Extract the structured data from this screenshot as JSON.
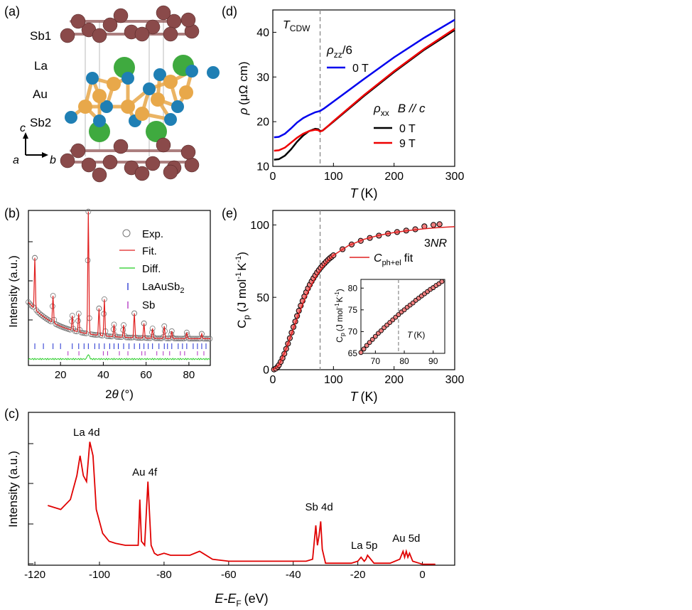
{
  "panel_labels": {
    "a": "(a)",
    "b": "(b)",
    "c": "(c)",
    "d": "(d)",
    "e": "(e)"
  },
  "crystal": {
    "atoms": {
      "sb1": "Sb1",
      "la": "La",
      "au": "Au",
      "sb2": "Sb2"
    },
    "axes": {
      "c": "c",
      "a": "a",
      "b": "b"
    },
    "colors": {
      "sb1": "#8a4a4a",
      "la": "#3faa3f",
      "au": "#e8a84a",
      "sb2": "#1f7fb4"
    }
  },
  "chart_data": [
    {
      "panel": "b",
      "type": "scatter",
      "ylabel": "Intensity (a.u.)",
      "xlabel_prefix": "2",
      "xlabel_symbol": "θ",
      "xlabel_unit": "(°)",
      "xlim": [
        5,
        90
      ],
      "xticks": [
        20,
        40,
        60,
        80
      ],
      "legend": [
        "Exp.",
        "Fit.",
        "Diff.",
        "LaAuSb",
        "Sb"
      ],
      "legend_sub": "2",
      "colors": {
        "exp": "#777777",
        "fit": "#e02020",
        "diff": "#22cc22",
        "laausb2": "#2030d0",
        "sb": "#b030c0"
      },
      "peaks": [
        {
          "x": 8,
          "y": 0.42
        },
        {
          "x": 16.5,
          "y": 0.22
        },
        {
          "x": 25.5,
          "y": 0.12
        },
        {
          "x": 28.5,
          "y": 0.15
        },
        {
          "x": 33,
          "y": 1.0
        },
        {
          "x": 38,
          "y": 0.22
        },
        {
          "x": 40.5,
          "y": 0.3
        },
        {
          "x": 45,
          "y": 0.1
        },
        {
          "x": 49.5,
          "y": 0.1
        },
        {
          "x": 54.5,
          "y": 0.2
        },
        {
          "x": 59,
          "y": 0.12
        },
        {
          "x": 63,
          "y": 0.08
        },
        {
          "x": 68.5,
          "y": 0.1
        },
        {
          "x": 72,
          "y": 0.06
        },
        {
          "x": 79,
          "y": 0.05
        },
        {
          "x": 86,
          "y": 0.04
        }
      ]
    },
    {
      "panel": "c",
      "type": "line",
      "ylabel": "Intensity (a.u.)",
      "xlabel": "E-E",
      "xlabel_sub": "F",
      "xlabel_unit": "(eV)",
      "xlim": [
        -122,
        10
      ],
      "xticks": [
        -120,
        -100,
        -80,
        -60,
        -40,
        -20,
        0
      ],
      "color": "#e00000",
      "annotations": [
        {
          "text": "La 4d",
          "x": -104
        },
        {
          "text": "Au 4f",
          "x": -86
        },
        {
          "text": "Sb 4d",
          "x": -32
        },
        {
          "text": "La 5p",
          "x": -18
        },
        {
          "text": "Au 5d",
          "x": -5
        }
      ],
      "series": [
        {
          "x": [
            -116,
            -112,
            -109,
            -107,
            -106,
            -105,
            -104,
            -103,
            -102,
            -101,
            -99,
            -97,
            -95,
            -92,
            -90,
            -88,
            -87.5,
            -87,
            -86,
            -85,
            -84,
            -83,
            -82,
            -80,
            -78,
            -75,
            -72,
            -69,
            -68,
            -65,
            -60,
            -50,
            -45,
            -40,
            -36,
            -34,
            -33,
            -32.5,
            -32,
            -31.5,
            -31,
            -30,
            -28,
            -25,
            -22,
            -20,
            -19,
            -18,
            -17.5,
            -17,
            -15,
            -10,
            -7,
            -6,
            -5.5,
            -5,
            -4.5,
            -4,
            -3,
            -1,
            0,
            2,
            4
          ],
          "y": [
            0.3,
            0.28,
            0.33,
            0.45,
            0.55,
            0.45,
            0.42,
            0.62,
            0.55,
            0.28,
            0.16,
            0.12,
            0.11,
            0.1,
            0.1,
            0.1,
            0.33,
            0.12,
            0.1,
            0.42,
            0.1,
            0.06,
            0.05,
            0.06,
            0.05,
            0.05,
            0.05,
            0.07,
            0.06,
            0.03,
            0.02,
            0.02,
            0.02,
            0.02,
            0.02,
            0.03,
            0.2,
            0.1,
            0.15,
            0.22,
            0.08,
            0.01,
            0.01,
            0.01,
            0.01,
            0.02,
            0.04,
            0.02,
            0.03,
            0.05,
            0.01,
            0.01,
            0.03,
            0.07,
            0.04,
            0.07,
            0.04,
            0.06,
            0.02,
            0.01,
            0.005,
            0.005,
            0.005
          ]
        }
      ]
    },
    {
      "panel": "d",
      "type": "line",
      "xlabel": "T",
      "xlabel_unit": "(K)",
      "ylabel_sym": "ρ",
      "ylabel_unit": "(μΩ cm)",
      "xlim": [
        0,
        300
      ],
      "ylim": [
        10,
        45
      ],
      "xticks": [
        0,
        100,
        200,
        300
      ],
      "yticks": [
        10,
        20,
        30,
        40
      ],
      "tcdw_label": "T",
      "tcdw_sub": "CDW",
      "tcdw_x": 78,
      "legend_top_rho": "ρ",
      "legend_top_sub": "zz",
      "legend_top_suffix": "/6",
      "legend_top_entry": "0 T",
      "legend_bottom_rho": "ρ",
      "legend_bottom_sub": "xx",
      "legend_bottom_field": "B // c",
      "legend_bottom_entries": [
        "0 T",
        "9 T"
      ],
      "series": [
        {
          "name": "0 T",
          "color": "#0000ee",
          "x": [
            2,
            10,
            20,
            30,
            40,
            50,
            60,
            70,
            78,
            85,
            100,
            150,
            200,
            250,
            300
          ],
          "y": [
            16.5,
            16.6,
            17.3,
            18.5,
            19.8,
            20.8,
            21.5,
            22.1,
            22.4,
            23.0,
            24.5,
            29.5,
            34.4,
            38.8,
            42.8
          ]
        },
        {
          "name": "0 T",
          "color": "#000000",
          "x": [
            2,
            10,
            20,
            30,
            40,
            50,
            60,
            70,
            75,
            78,
            82,
            90,
            100,
            150,
            200,
            250,
            300
          ],
          "y": [
            11.5,
            11.6,
            12.4,
            13.8,
            15.5,
            16.9,
            17.9,
            18.4,
            18.3,
            17.9,
            18.0,
            18.9,
            20.0,
            25.7,
            31.1,
            36.1,
            40.5
          ]
        },
        {
          "name": "9 T",
          "color": "#ee0000",
          "x": [
            2,
            10,
            20,
            30,
            40,
            50,
            60,
            70,
            75,
            78,
            82,
            90,
            100,
            150,
            200,
            250,
            300
          ],
          "y": [
            13.5,
            13.6,
            14.2,
            15.3,
            16.4,
            17.3,
            17.9,
            18.2,
            18.1,
            17.8,
            18.0,
            18.9,
            20.1,
            25.9,
            31.3,
            36.3,
            40.8
          ]
        }
      ]
    },
    {
      "panel": "e",
      "type": "scatter",
      "xlabel": "T",
      "xlabel_unit": "(K)",
      "ylabel_c": "C",
      "ylabel_sub": "p",
      "ylabel_rest": "(J mol",
      "ylabel_sup1": "-1",
      "ylabel_k": "K",
      "ylabel_sup2": "-1",
      "ylabel_close": ")",
      "xlim": [
        0,
        300
      ],
      "ylim": [
        0,
        110
      ],
      "xticks": [
        0,
        100,
        200,
        300
      ],
      "yticks": [
        0,
        50,
        100
      ],
      "vline_x": 78,
      "label_3nr_a": "3",
      "label_3nr_b": "NR",
      "fit_legend": "C",
      "fit_legend_sub": "ph+el",
      "fit_legend_suffix": "fit",
      "fit_color": "#e02020",
      "marker_fill": "#f08080",
      "points_x": [
        2,
        5,
        8,
        10,
        13,
        16,
        19,
        22,
        25,
        28,
        31,
        34,
        37,
        40,
        43,
        46,
        49,
        52,
        55,
        58,
        61,
        64,
        67,
        70,
        73,
        76,
        79,
        82,
        85,
        88,
        91,
        94,
        97,
        100,
        115,
        130,
        145,
        160,
        175,
        190,
        205,
        220,
        235,
        250,
        265,
        275
      ],
      "points_y": [
        0.2,
        0.8,
        2.0,
        3.2,
        5.4,
        8.0,
        11.0,
        14.4,
        18.0,
        21.8,
        25.6,
        29.5,
        33.3,
        37.1,
        40.7,
        44.2,
        47.5,
        50.6,
        53.5,
        56.2,
        58.7,
        61.0,
        63.2,
        65.2,
        67.1,
        68.8,
        70.4,
        71.9,
        73.3,
        74.6,
        75.8,
        77.0,
        78.0,
        79.0,
        83.2,
        86.5,
        89.0,
        91.0,
        92.6,
        94.0,
        95.1,
        96.1,
        97.0,
        99.0,
        100.0,
        100.5
      ],
      "fit_x": [
        0,
        10,
        20,
        30,
        40,
        50,
        60,
        70,
        80,
        90,
        100,
        125,
        150,
        175,
        200,
        225,
        250,
        275,
        300
      ],
      "fit_y": [
        0,
        3.2,
        12.4,
        23.6,
        35.2,
        46,
        55.5,
        63.4,
        69.8,
        75,
        79,
        85.8,
        90,
        92.8,
        94.8,
        96.2,
        97.4,
        98.2,
        98.8
      ],
      "inset": {
        "xlim": [
          65,
          94
        ],
        "ylim": [
          65,
          82
        ],
        "xticks": [
          70,
          80,
          90
        ],
        "yticks": [
          65,
          70,
          75,
          80
        ],
        "xlabel": "T",
        "xlabel_unit": "(K)",
        "ylabel_c": "C",
        "ylabel_sub": "p",
        "ylabel_rest": "(J mol",
        "ylabel_sup1": "-1",
        "ylabel_k": "K",
        "ylabel_sup2": "-1",
        "ylabel_close": ")",
        "vline_x": 78,
        "points_x": [
          65,
          66,
          67,
          68,
          69,
          70,
          71,
          72,
          73,
          74,
          75,
          76,
          77,
          78,
          79,
          80,
          81,
          82,
          83,
          84,
          85,
          86,
          87,
          88,
          89,
          90,
          91,
          92,
          93
        ],
        "points_y": [
          65.2,
          66.0,
          66.8,
          67.5,
          68.2,
          68.9,
          69.6,
          70.2,
          70.9,
          71.5,
          72.1,
          72.7,
          73.3,
          73.9,
          74.5,
          75.0,
          75.6,
          76.1,
          76.6,
          77.2,
          77.7,
          78.2,
          78.7,
          79.2,
          79.7,
          80.1,
          80.6,
          81.0,
          81.5
        ]
      }
    }
  ]
}
